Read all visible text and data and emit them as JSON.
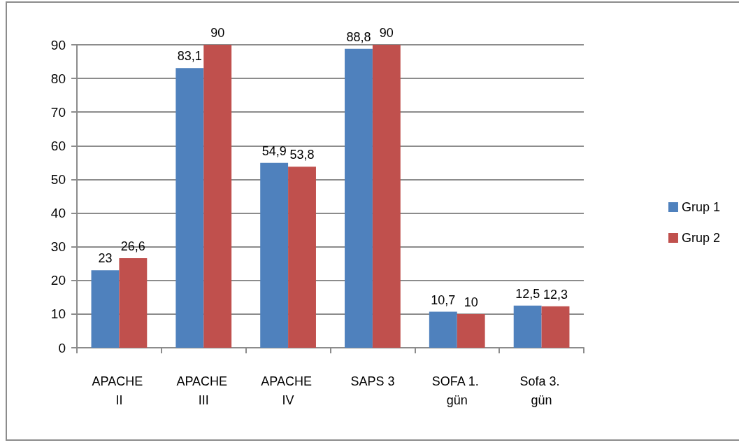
{
  "chart_data": {
    "type": "bar",
    "categories": [
      "APACHE II",
      "APACHE III",
      "APACHE IV",
      "SAPS 3",
      "SOFA 1. gün",
      "Sofa 3. gün"
    ],
    "series": [
      {
        "name": "Grup 1",
        "color": "#4f81bd",
        "values": [
          23,
          83.1,
          54.9,
          88.8,
          10.7,
          12.5
        ],
        "value_labels": [
          "23",
          "83,1",
          "54,9",
          "88,8",
          "10,7",
          "12,5"
        ]
      },
      {
        "name": "Grup 2",
        "color": "#c0504d",
        "values": [
          26.6,
          90,
          53.8,
          90,
          10,
          12.3
        ],
        "value_labels": [
          "26,6",
          "90",
          "53,8",
          "90",
          "10",
          "12,3"
        ]
      }
    ],
    "ylim": [
      0,
      90
    ],
    "yticks": [
      0,
      10,
      20,
      30,
      40,
      50,
      60,
      70,
      80,
      90
    ],
    "grid": "y",
    "legend": "right"
  }
}
